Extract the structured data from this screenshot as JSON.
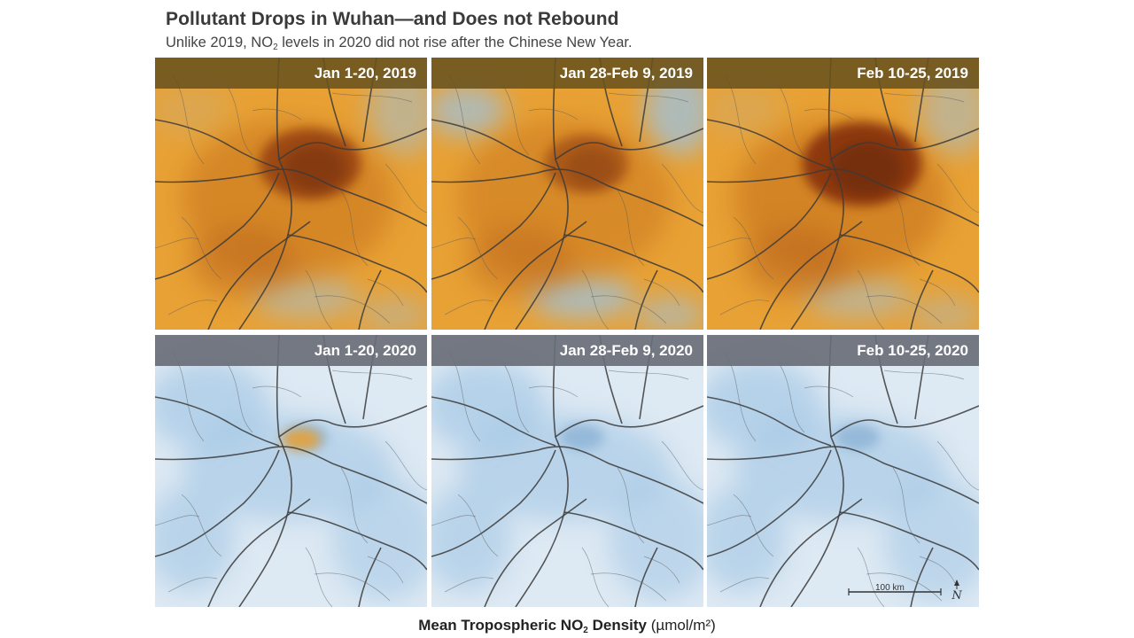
{
  "title": "Pollutant Drops in Wuhan—and Does not Rebound",
  "subtitle": {
    "before": "Unlike 2019, NO",
    "sub": "2",
    "after": " levels in 2020 did not rise after the Chinese New Year."
  },
  "panels": [
    {
      "label": "Jan 1-20, 2019",
      "year": "2019",
      "level": 0.75
    },
    {
      "label": "Jan 28-Feb 9, 2019",
      "year": "2019",
      "level": 0.55
    },
    {
      "label": "Feb 10-25, 2019",
      "year": "2019",
      "level": 0.95
    },
    {
      "label": "Jan 1-20, 2020",
      "year": "2020",
      "level": 0.2
    },
    {
      "label": "Jan 28-Feb 9, 2020",
      "year": "2020",
      "level": 0.1
    },
    {
      "label": "Feb 10-25, 2020",
      "year": "2020",
      "level": 0.1
    }
  ],
  "scale": {
    "label": "100 km",
    "north": "N"
  },
  "footer": {
    "bold_before": "Mean Tropospheric NO",
    "bold_sub": "2",
    "bold_after": " Density",
    "unit": "(µmol/m²)"
  },
  "colors": {
    "high": "#6b2a0a",
    "mid": "#e8a135",
    "low": "#9cc3e3",
    "roads": "#3b3b3b"
  }
}
